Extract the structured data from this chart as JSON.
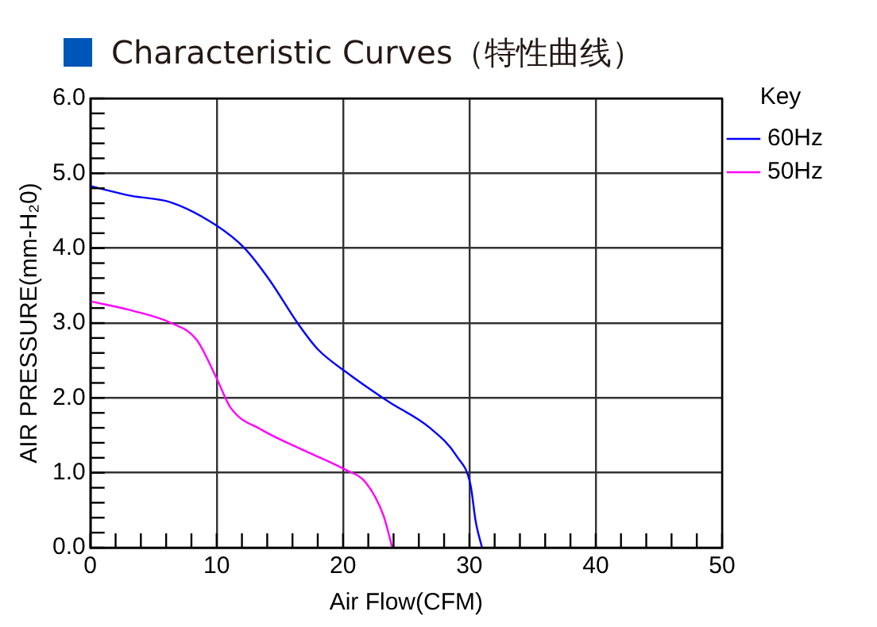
{
  "chart_data": {
    "type": "line",
    "title": "Characteristic Curves（特性曲线）",
    "xlabel": "Air Flow(CFM)",
    "ylabel": "AIR PRESSURE(mm-H₂0)",
    "legend_title": "Key",
    "legend": "top right",
    "grid": true,
    "marker": "none",
    "line_style": "solid",
    "xlim": [
      0,
      50
    ],
    "ylim": [
      0,
      6
    ],
    "xticks": [
      0,
      {
        "value": 2,
        "label": null
      },
      {
        "value": 4,
        "label": null
      },
      {
        "value": 6,
        "label": null
      },
      {
        "value": 8,
        "label": null
      },
      10,
      {
        "value": 12,
        "label": null
      },
      {
        "value": 14,
        "label": null
      },
      {
        "value": 16,
        "label": null
      },
      {
        "value": 18,
        "label": null
      },
      20,
      {
        "value": 22,
        "label": null
      },
      {
        "value": 24,
        "label": null
      },
      {
        "value": 26,
        "label": null
      },
      {
        "value": 28,
        "label": null
      },
      30,
      {
        "value": 32,
        "label": null
      },
      {
        "value": 34,
        "label": null
      },
      {
        "value": 36,
        "label": null
      },
      {
        "value": 38,
        "label": null
      },
      40,
      {
        "value": 42,
        "label": null
      },
      {
        "value": 44,
        "label": null
      },
      {
        "value": 46,
        "label": null
      },
      {
        "value": 48,
        "label": null
      },
      50
    ],
    "yticks": [
      {
        "value": 0,
        "label": "0.0"
      },
      {
        "value": 0.2,
        "label": null
      },
      {
        "value": 0.4,
        "label": null
      },
      {
        "value": 0.6,
        "label": null
      },
      {
        "value": 0.8,
        "label": null
      },
      {
        "value": 1,
        "label": "1.0"
      },
      {
        "value": 1.2,
        "label": null
      },
      {
        "value": 1.4,
        "label": null
      },
      {
        "value": 1.6,
        "label": null
      },
      {
        "value": 1.8,
        "label": null
      },
      {
        "value": 2,
        "label": "2.0"
      },
      {
        "value": 2.2,
        "label": null
      },
      {
        "value": 2.4,
        "label": null
      },
      {
        "value": 2.6,
        "label": null
      },
      {
        "value": 2.8,
        "label": null
      },
      {
        "value": 3,
        "label": "3.0"
      },
      {
        "value": 3.2,
        "label": null
      },
      {
        "value": 3.4,
        "label": null
      },
      {
        "value": 3.6,
        "label": null
      },
      {
        "value": 3.8,
        "label": null
      },
      {
        "value": 4,
        "label": "4.0"
      },
      {
        "value": 4.2,
        "label": null
      },
      {
        "value": 4.4,
        "label": null
      },
      {
        "value": 4.6,
        "label": null
      },
      {
        "value": 4.8,
        "label": null
      },
      {
        "value": 5,
        "label": "5.0"
      },
      {
        "value": 5.2,
        "label": null
      },
      {
        "value": 5.4,
        "label": null
      },
      {
        "value": 5.6,
        "label": null
      },
      {
        "value": 5.8,
        "label": null
      },
      {
        "value": 6,
        "label": "6.0"
      }
    ],
    "series": [
      {
        "name": "60Hz",
        "color": "#0000ff",
        "x": [
          0,
          3.2,
          6.4,
          10,
          12.2,
          14.2,
          16.4,
          18,
          20.2,
          23.5,
          26.8,
          29,
          30.1,
          30.5,
          31
        ],
        "values": [
          4.83,
          4.7,
          4.61,
          4.3,
          4,
          3.57,
          3,
          2.65,
          2.35,
          1.96,
          1.61,
          1.22,
          0.83,
          0.35,
          0
        ]
      },
      {
        "name": "50Hz",
        "color": "#ff00ff",
        "x": [
          0,
          3.2,
          6.4,
          8.4,
          10,
          11.1,
          13.6,
          16.9,
          20.2,
          21.8,
          23.2,
          23.9
        ],
        "values": [
          3.29,
          3.17,
          3,
          2.78,
          2.26,
          1.87,
          1.57,
          1.3,
          1.04,
          0.87,
          0.43,
          0
        ]
      }
    ]
  }
}
